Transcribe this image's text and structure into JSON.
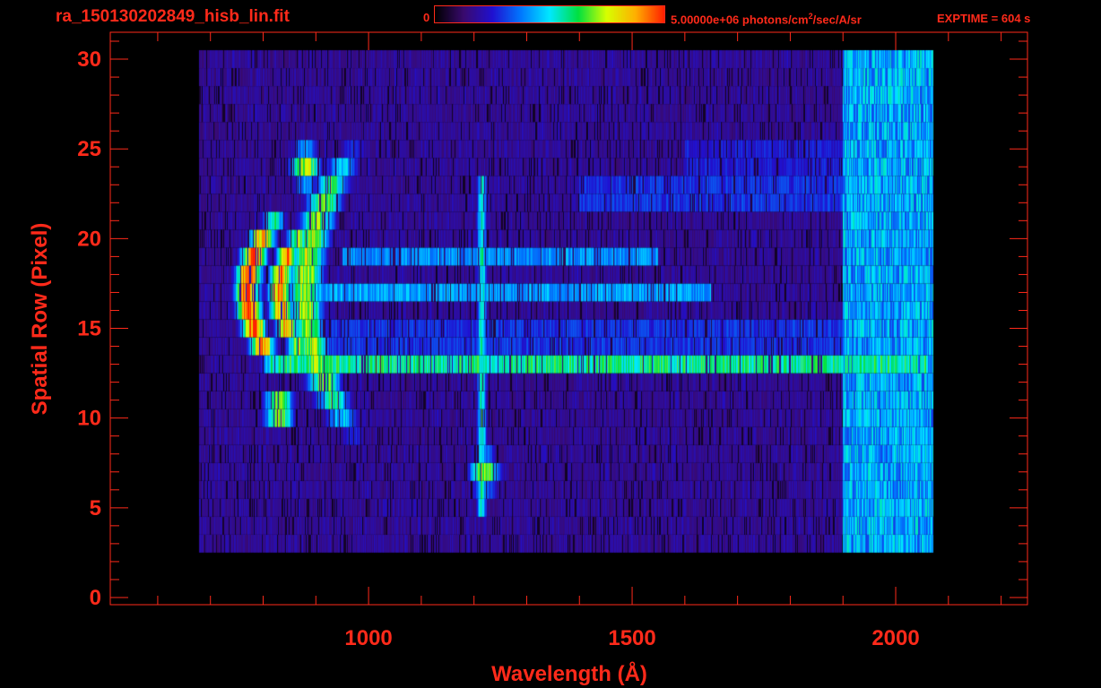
{
  "header": {
    "file_title": "ra_150130202849_hisb_lin.fit",
    "colorbar_min": "0",
    "colorbar_max_value": "5.00000e+06 photons/cm",
    "colorbar_max_exp": "2",
    "colorbar_max_tail": "/sec/A/sr",
    "exptime": "EXPTIME = 604 s"
  },
  "colors": {
    "axis": "#ff2a1a",
    "background": "#000000",
    "colormap": [
      "#000000",
      "#3a0a6e",
      "#2010d0",
      "#0078ff",
      "#00e8ff",
      "#00e040",
      "#d8ff00",
      "#ffb000",
      "#ff2000"
    ]
  },
  "chart_data": {
    "type": "heatmap",
    "title": "",
    "xlabel": "Wavelength (Å)",
    "ylabel": "Spatial Row (Pixel)",
    "xlim": [
      510,
      2250
    ],
    "ylim": [
      -0.4,
      31.5
    ],
    "xticks": [
      1000,
      1500,
      2000
    ],
    "yticks": [
      0,
      5,
      10,
      15,
      20,
      25,
      30
    ],
    "x_minor_step": 100,
    "y_minor_step": 1,
    "wavelength_range": [
      680,
      2070
    ],
    "rows_with_signal": [
      3,
      30
    ],
    "colorbar_range": [
      0,
      5000000
    ],
    "colorbar_unit": "photons/cm^2/sec/A/sr",
    "exposure_time_s": 604,
    "features": [
      {
        "kind": "arc",
        "x_center": 770,
        "x_halfwidth": 25,
        "row_center": 17,
        "row_halfwidth": 3.8,
        "curvature": 45,
        "intensity": 1.0
      },
      {
        "kind": "arc",
        "x_center": 830,
        "x_halfwidth": 22,
        "row_center": 17,
        "row_halfwidth": 3.2,
        "curvature": 40,
        "intensity": 0.92
      },
      {
        "kind": "arc",
        "x_center": 880,
        "x_halfwidth": 35,
        "row_center": 17,
        "row_halfwidth": 7,
        "curvature": 70,
        "intensity": 0.72
      },
      {
        "kind": "band",
        "row": 13,
        "x_from": 820,
        "x_to": 2060,
        "intensity": 0.58
      },
      {
        "kind": "band",
        "row": 14.5,
        "x_from": 850,
        "x_to": 1900,
        "intensity": 0.45
      },
      {
        "kind": "band",
        "row": 17,
        "x_from": 900,
        "x_to": 1650,
        "intensity": 0.42
      },
      {
        "kind": "band",
        "row": 19,
        "x_from": 950,
        "x_to": 1550,
        "intensity": 0.4
      },
      {
        "kind": "band",
        "row": 22.5,
        "x_from": 1400,
        "x_to": 1950,
        "intensity": 0.45
      },
      {
        "kind": "band",
        "row": 24.5,
        "x_from": 1600,
        "x_to": 1950,
        "intensity": 0.4
      },
      {
        "kind": "blob",
        "x": 880,
        "row": 24,
        "intensity": 0.78
      },
      {
        "kind": "blob",
        "x": 830,
        "row": 10.5,
        "intensity": 0.8
      },
      {
        "kind": "line",
        "x": 1215,
        "row_from": 5,
        "row_to": 23,
        "intensity": 0.55
      },
      {
        "kind": "blob",
        "x": 1220,
        "row": 7,
        "intensity": 0.72
      },
      {
        "kind": "band",
        "row": 7.5,
        "x_from": 1900,
        "x_to": 2060,
        "intensity": 0.5
      }
    ]
  }
}
